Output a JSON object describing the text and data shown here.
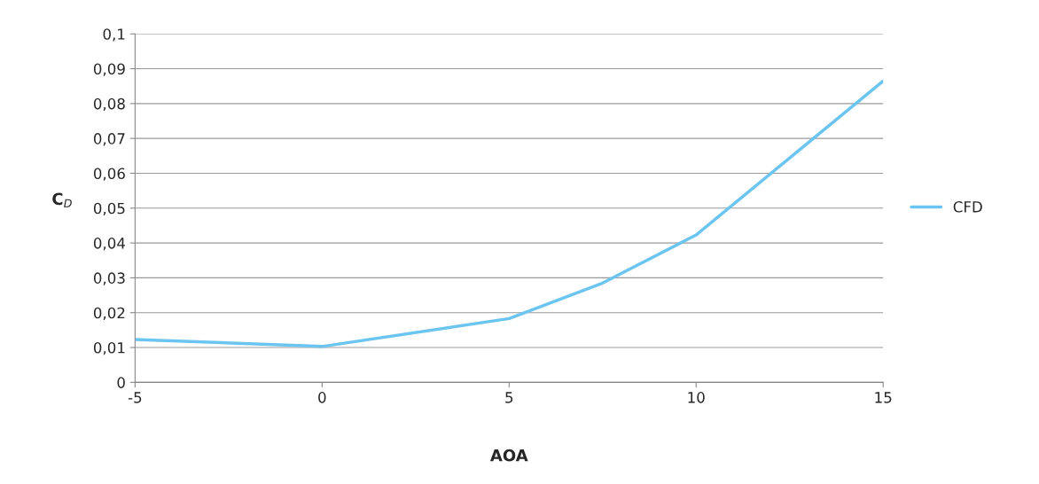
{
  "chart_data": {
    "type": "line",
    "xlabel": "AOA",
    "ylabel": "C$_{D}$",
    "x": [
      -5,
      0,
      5,
      7.5,
      10,
      15
    ],
    "series": [
      {
        "name": "CFD",
        "color": "#6cc5f0",
        "values": [
          0.0123,
          0.0103,
          0.0183,
          0.0285,
          0.0423,
          0.0865
        ]
      }
    ],
    "xlim": [
      -5,
      15
    ],
    "xticks": [
      -5,
      0,
      5,
      10,
      15
    ],
    "ylim": [
      0,
      0.1
    ],
    "yticks": [
      0,
      {
        "value": 0.01,
        "label": "0,01"
      },
      {
        "value": 0.02,
        "label": "0,02"
      },
      {
        "value": 0.03,
        "label": "0,03"
      },
      {
        "value": 0.04,
        "label": "0,04"
      },
      {
        "value": 0.05,
        "label": "0,05"
      },
      {
        "value": 0.06,
        "label": "0,06"
      },
      {
        "value": 0.07,
        "label": "0,07"
      },
      {
        "value": 0.08,
        "label": "0,08"
      },
      {
        "value": 0.09,
        "label": "0,09"
      },
      {
        "value": 0.1,
        "label": "0,1"
      }
    ],
    "grid": "y",
    "legend": "right",
    "marker": "none",
    "line_style": "solid"
  }
}
